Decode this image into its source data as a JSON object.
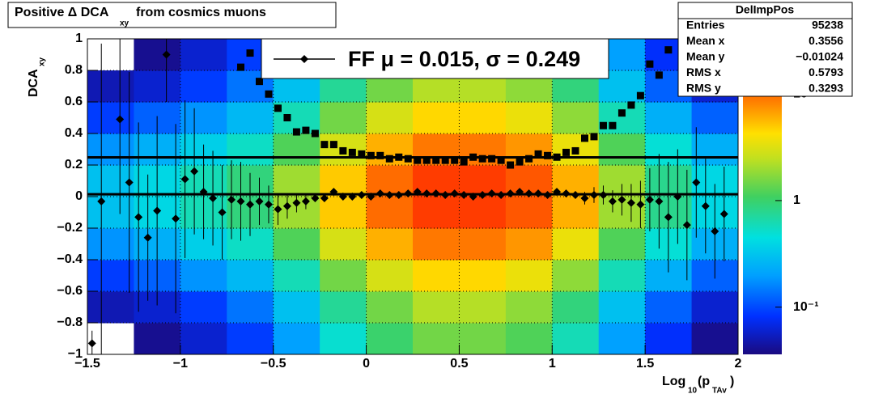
{
  "chart_data": {
    "type": "profile2d",
    "title": [
      "Positive Δ DCA",
      "xy",
      "from cosmics muons"
    ],
    "y_label": [
      "DCA",
      "xy"
    ],
    "x_label": [
      "Log",
      "10",
      "(p",
      "TAv",
      ")"
    ],
    "xlim": [
      -1.5,
      2
    ],
    "ylim": [
      -1,
      1
    ],
    "xticks": [
      {
        "value": -1.5,
        "label": "−1.5"
      },
      {
        "value": -1,
        "label": "−1"
      },
      {
        "value": -0.5,
        "label": "−0.5"
      },
      0,
      0.5,
      1,
      1.5,
      2
    ],
    "yticks": [
      {
        "value": -1,
        "label": "−1"
      },
      {
        "value": -0.8,
        "label": "−0.8"
      },
      {
        "value": -0.6,
        "label": "−0.6"
      },
      {
        "value": -0.4,
        "label": "−0.4"
      },
      {
        "value": -0.2,
        "label": "−0.2"
      },
      0,
      0.2,
      0.4,
      0.6,
      0.8,
      1
    ],
    "grid": true,
    "zlim": [
      0.036,
      33
    ],
    "zlog": true,
    "zticks": [
      {
        "value": 0.1,
        "label": "10⁻¹"
      },
      1,
      10
    ],
    "heatmap": {
      "xbins": [
        -1.5,
        -1.25,
        -1,
        -0.75,
        -0.5,
        -0.25,
        0,
        0.25,
        0.5,
        0.75,
        1,
        1.25,
        1.5,
        1.75,
        2
      ],
      "ybins": [
        -1,
        -0.8,
        -0.6,
        -0.4,
        -0.2,
        0,
        0.2,
        0.4,
        0.6,
        0.8,
        1
      ],
      "z": [
        [
          0.03,
          0.04,
          0.06,
          0.09,
          0.2,
          0.5,
          1,
          1.5,
          1.5,
          1.2,
          0.6,
          0.2,
          0.08,
          0.04
        ],
        [
          0.05,
          0.06,
          0.09,
          0.14,
          0.3,
          0.75,
          1.5,
          2.3,
          2.3,
          1.8,
          0.9,
          0.3,
          0.12,
          0.06
        ],
        [
          0.09,
          0.12,
          0.18,
          0.27,
          0.6,
          1.5,
          3,
          4.5,
          4.5,
          3.6,
          1.8,
          0.6,
          0.24,
          0.12
        ],
        [
          0.18,
          0.24,
          0.36,
          0.54,
          1.2,
          3,
          6,
          9,
          9,
          7.2,
          3.6,
          1.2,
          0.48,
          0.24
        ],
        [
          0.3,
          0.4,
          0.6,
          0.9,
          2,
          5,
          10,
          15,
          15,
          12,
          6,
          2,
          0.8,
          0.4
        ],
        [
          0.3,
          0.4,
          0.6,
          0.9,
          2,
          5,
          10,
          15,
          15,
          12,
          6,
          2,
          0.8,
          0.4
        ],
        [
          0.18,
          0.24,
          0.36,
          0.54,
          1.2,
          3,
          6,
          9,
          9,
          7.2,
          3.6,
          1.2,
          0.48,
          0.24
        ],
        [
          0.09,
          0.12,
          0.18,
          0.27,
          0.6,
          1.5,
          3,
          4.5,
          4.5,
          3.6,
          1.8,
          0.6,
          0.24,
          0.12
        ],
        [
          0.05,
          0.06,
          0.09,
          0.14,
          0.3,
          0.75,
          1.5,
          2.3,
          2.3,
          1.8,
          0.9,
          0.3,
          0.12,
          0.06
        ],
        [
          0.03,
          0.04,
          0.06,
          0.09,
          0.2,
          0.5,
          1,
          1.5,
          1.5,
          1.2,
          0.6,
          0.2,
          0.08,
          0.04
        ]
      ]
    },
    "x": [
      -1.475,
      -1.425,
      -1.375,
      -1.325,
      -1.275,
      -1.225,
      -1.175,
      -1.125,
      -1.075,
      -1.025,
      -0.975,
      -0.925,
      -0.875,
      -0.825,
      -0.775,
      -0.725,
      -0.675,
      -0.625,
      -0.575,
      -0.525,
      -0.475,
      -0.425,
      -0.375,
      -0.325,
      -0.275,
      -0.225,
      -0.175,
      -0.125,
      -0.075,
      -0.025,
      0.025,
      0.075,
      0.125,
      0.175,
      0.225,
      0.275,
      0.325,
      0.375,
      0.425,
      0.475,
      0.525,
      0.575,
      0.625,
      0.675,
      0.725,
      0.775,
      0.825,
      0.875,
      0.925,
      0.975,
      1.025,
      1.075,
      1.125,
      1.175,
      1.225,
      1.275,
      1.325,
      1.375,
      1.425,
      1.475,
      1.525,
      1.575,
      1.625,
      1.675,
      1.725,
      1.775,
      1.825,
      1.875,
      1.925
    ],
    "series": [
      {
        "marker": "diamond",
        "color": "#000000",
        "values": [
          -0.93,
          -0.03,
          null,
          0.49,
          0.09,
          -0.13,
          -0.26,
          -0.09,
          0.9,
          -0.14,
          0.11,
          0.16,
          0.03,
          -0.01,
          -0.1,
          -0.02,
          -0.03,
          -0.05,
          -0.03,
          -0.05,
          -0.08,
          -0.06,
          -0.04,
          -0.03,
          -0.01,
          -0.01,
          0.03,
          0,
          0,
          0.01,
          0,
          0.02,
          0.01,
          0.01,
          0.02,
          0.03,
          0.02,
          0.02,
          0.01,
          0.02,
          0.01,
          0,
          0.01,
          0.02,
          0.01,
          0.02,
          0.03,
          0.02,
          0.02,
          0.01,
          0.03,
          0.02,
          0.01,
          -0.01,
          0.01,
          0.01,
          -0.03,
          -0.02,
          -0.04,
          -0.05,
          -0.02,
          -0.03,
          -0.13,
          0,
          -0.18,
          0.09,
          -0.06,
          -0.22,
          -0.11
        ],
        "errors": [
          0.08,
          1.0,
          null,
          0.6,
          0.7,
          0.6,
          0.4,
          0.6,
          0.3,
          0.6,
          0.5,
          0.4,
          0.3,
          0.3,
          0.3,
          0.25,
          0.25,
          0.2,
          0.15,
          0.12,
          0.1,
          0.08,
          0.06,
          0.05,
          0.02,
          0.02,
          0.02,
          0.02,
          0.02,
          0.02,
          0.02,
          0.02,
          0.02,
          0.02,
          0.02,
          0.02,
          0.02,
          0.02,
          0.02,
          0.02,
          0.02,
          0.02,
          0.02,
          0.02,
          0.02,
          0.02,
          0.02,
          0.02,
          0.02,
          0.02,
          0.02,
          0.02,
          0.02,
          0.04,
          0.05,
          0.06,
          0.07,
          0.1,
          0.12,
          0.15,
          0.2,
          0.3,
          0.35,
          0.3,
          0.35,
          0.35,
          0.3,
          0.3,
          0.3
        ]
      },
      {
        "marker": "square",
        "color": "#000000",
        "values": [
          null,
          null,
          null,
          null,
          null,
          null,
          null,
          null,
          null,
          null,
          null,
          null,
          null,
          null,
          null,
          null,
          0.82,
          0.91,
          0.73,
          0.65,
          0.56,
          0.5,
          0.41,
          0.42,
          0.4,
          0.33,
          0.33,
          0.29,
          0.28,
          0.27,
          0.26,
          0.26,
          0.24,
          0.25,
          0.24,
          0.23,
          0.23,
          0.23,
          0.23,
          0.23,
          0.22,
          0.25,
          0.24,
          0.24,
          0.23,
          0.2,
          0.22,
          0.24,
          0.27,
          0.26,
          0.25,
          0.28,
          0.29,
          0.37,
          0.38,
          0.45,
          0.45,
          0.53,
          0.58,
          0.64,
          0.84,
          0.77,
          0.93,
          null,
          null,
          null,
          null,
          null,
          null
        ]
      }
    ],
    "lines": [
      {
        "value": 0.015,
        "color": "#000000"
      },
      {
        "value": 0.249,
        "color": "#000000"
      }
    ],
    "legend": "FF μ =  0.015, σ =   0.249",
    "stats": {
      "name": "DelImpPos",
      "rows": [
        [
          "Entries",
          95238
        ],
        [
          "Mean x",
          0.3556
        ],
        [
          "Mean y",
          "−0.01024"
        ],
        [
          "RMS x",
          0.5793
        ],
        [
          "RMS y",
          0.3293
        ]
      ]
    }
  }
}
